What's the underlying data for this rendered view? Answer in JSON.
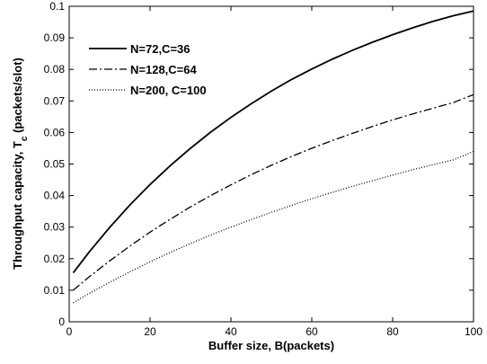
{
  "chart_data": {
    "type": "line",
    "title": "",
    "xlabel": "Buffer size, B(packets)",
    "ylabel": {
      "prefix": "Throughput capacity, T",
      "subscript": "c",
      "suffix": " (packets/slot)"
    },
    "xlim": [
      0,
      100
    ],
    "ylim": [
      0,
      0.1
    ],
    "xticks": [
      "0",
      "20",
      "40",
      "60",
      "80",
      "100"
    ],
    "yticks": [
      "0",
      "0.01",
      "0.02",
      "0.03",
      "0.04",
      "0.05",
      "0.06",
      "0.07",
      "0.08",
      "0.09",
      "0.1"
    ],
    "grid": false,
    "legend_position": "top-left",
    "series": [
      {
        "name": "N=72,C=36",
        "style": "solid",
        "x": [
          1,
          5,
          10,
          15,
          20,
          25,
          30,
          35,
          40,
          45,
          50,
          55,
          60,
          65,
          70,
          75,
          80,
          85,
          90,
          95,
          100
        ],
        "y": [
          0.0155,
          0.0222,
          0.0299,
          0.037,
          0.0435,
          0.0495,
          0.055,
          0.0601,
          0.0648,
          0.0691,
          0.0731,
          0.0768,
          0.0801,
          0.0832,
          0.086,
          0.0886,
          0.091,
          0.0932,
          0.0952,
          0.097,
          0.0985
        ]
      },
      {
        "name": "N=128,C=64",
        "style": "dashdot",
        "x": [
          1,
          5,
          10,
          15,
          20,
          25,
          30,
          35,
          40,
          45,
          50,
          55,
          60,
          65,
          70,
          75,
          80,
          85,
          90,
          95,
          100
        ],
        "y": [
          0.01,
          0.0143,
          0.0193,
          0.024,
          0.0284,
          0.0325,
          0.0364,
          0.04,
          0.0434,
          0.0466,
          0.0496,
          0.0524,
          0.055,
          0.0574,
          0.0597,
          0.0619,
          0.064,
          0.0659,
          0.0677,
          0.0695,
          0.072
        ]
      },
      {
        "name": "N=200, C=100",
        "style": "dotted",
        "x": [
          1,
          5,
          10,
          15,
          20,
          25,
          30,
          35,
          40,
          45,
          50,
          55,
          60,
          65,
          70,
          75,
          80,
          85,
          90,
          95,
          100
        ],
        "y": [
          0.006,
          0.009,
          0.0125,
          0.0158,
          0.019,
          0.022,
          0.0248,
          0.0275,
          0.03,
          0.0324,
          0.0347,
          0.0369,
          0.039,
          0.041,
          0.0429,
          0.0447,
          0.0465,
          0.0482,
          0.0498,
          0.0513,
          0.054
        ]
      }
    ]
  }
}
